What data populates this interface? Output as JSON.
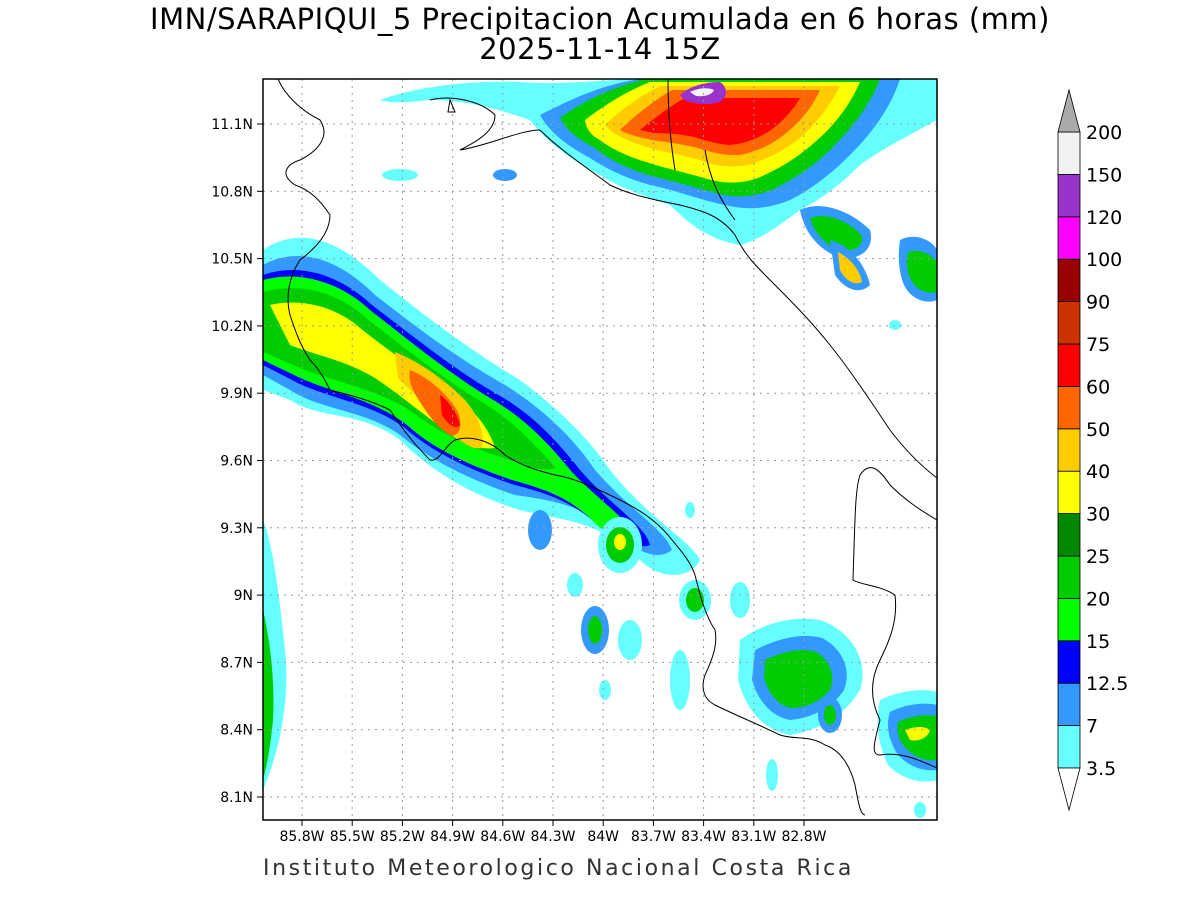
{
  "title": {
    "line1": "IMN/SARAPIQUI_5 Precipitacion Acumulada en 6 horas (mm)",
    "line2": "2025-11-14 15Z"
  },
  "footer": "Instituto Meteorologico Nacional Costa Rica",
  "axes": {
    "lat_ticks": [
      "11.1N",
      "10.8N",
      "10.5N",
      "10.2N",
      "9.9N",
      "9.6N",
      "9.3N",
      "9N",
      "8.7N",
      "8.4N",
      "8.1N"
    ],
    "lon_ticks": [
      "85.8W",
      "85.5W",
      "85.2W",
      "84.9W",
      "84.6W",
      "84.3W",
      "84W",
      "83.7W",
      "83.4W",
      "83.1W",
      "82.8W"
    ]
  },
  "legend": {
    "levels": [
      "3.5",
      "7",
      "12.5",
      "15",
      "20",
      "25",
      "30",
      "40",
      "50",
      "60",
      "75",
      "90",
      "100",
      "120",
      "150",
      "200"
    ],
    "colors": [
      "#66ffff",
      "#3399ff",
      "#0000ff",
      "#00ff00",
      "#00cc00",
      "#008800",
      "#ffff00",
      "#ffcc00",
      "#ff6600",
      "#ff0000",
      "#cc3300",
      "#990000",
      "#ff00ff",
      "#9933cc",
      "#f2f2f2",
      "#aaaaaa"
    ]
  }
}
